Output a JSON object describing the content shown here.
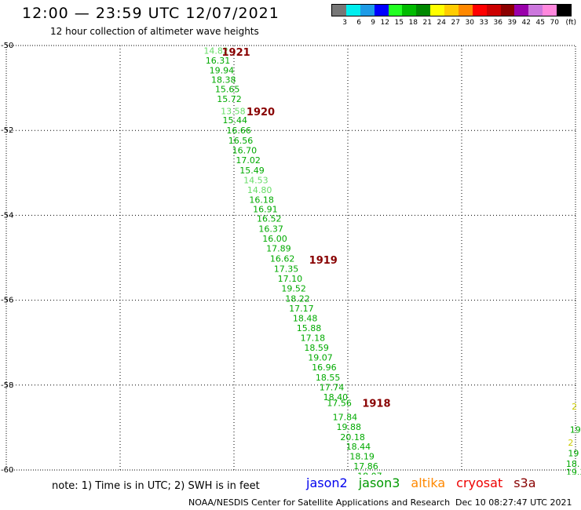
{
  "title": "12:00 — 23:59 UTC 12/07/2021",
  "subtitle": "12 hour collection of altimeter wave heights",
  "legend": {
    "unit": "(ft)",
    "bins": [
      {
        "label": "3",
        "color": "#777777"
      },
      {
        "label": "6",
        "color": "#00eeee"
      },
      {
        "label": "9",
        "color": "#1e9be6"
      },
      {
        "label": "12",
        "color": "#0000ff"
      },
      {
        "label": "15",
        "color": "#22ff22"
      },
      {
        "label": "18",
        "color": "#00bb00"
      },
      {
        "label": "21",
        "color": "#008800"
      },
      {
        "label": "24",
        "color": "#ffff00"
      },
      {
        "label": "27",
        "color": "#ffcc00"
      },
      {
        "label": "30",
        "color": "#ff8800"
      },
      {
        "label": "33",
        "color": "#ff0000"
      },
      {
        "label": "36",
        "color": "#cc0000"
      },
      {
        "label": "39",
        "color": "#8b0000"
      },
      {
        "label": "42",
        "color": "#9900aa"
      },
      {
        "label": "45",
        "color": "#cc77dd"
      },
      {
        "label": "70",
        "color": "#ff88dd"
      },
      {
        "label": "",
        "color": "#000000"
      }
    ]
  },
  "map": {
    "lon_range": [
      45,
      60
    ],
    "lat_range": [
      -50,
      -60
    ],
    "lon_ticks": [
      "45",
      "48",
      "51",
      "54",
      "57",
      "60"
    ],
    "lat_ticks": [
      "-50",
      "-52",
      "-54",
      "-56",
      "-58",
      "-60"
    ]
  },
  "track_points": [
    {
      "lon": 50.2,
      "lat": -50.12,
      "value": "14.82",
      "color": "#66dd66"
    },
    {
      "lon": 50.25,
      "lat": -50.35,
      "value": "16.31",
      "color": "#00aa00"
    },
    {
      "lon": 50.35,
      "lat": -50.58,
      "value": "19.94",
      "color": "#00aa00"
    },
    {
      "lon": 50.4,
      "lat": -50.8,
      "value": "18.38",
      "color": "#00aa00"
    },
    {
      "lon": 50.5,
      "lat": -51.03,
      "value": "15.65",
      "color": "#00aa00"
    },
    {
      "lon": 50.55,
      "lat": -51.26,
      "value": "15.72",
      "color": "#00aa00"
    },
    {
      "lon": 50.65,
      "lat": -51.54,
      "value": "13.58",
      "color": "#66dd66"
    },
    {
      "lon": 50.7,
      "lat": -51.76,
      "value": "15.44",
      "color": "#00aa00"
    },
    {
      "lon": 50.8,
      "lat": -52.0,
      "value": "16.66",
      "color": "#00aa00"
    },
    {
      "lon": 50.85,
      "lat": -52.24,
      "value": "16.56",
      "color": "#00aa00"
    },
    {
      "lon": 50.95,
      "lat": -52.47,
      "value": "16.70",
      "color": "#00aa00"
    },
    {
      "lon": 51.05,
      "lat": -52.7,
      "value": "17.02",
      "color": "#00aa00"
    },
    {
      "lon": 51.15,
      "lat": -52.94,
      "value": "15.49",
      "color": "#00aa00"
    },
    {
      "lon": 51.25,
      "lat": -53.17,
      "value": "14.53",
      "color": "#66dd66"
    },
    {
      "lon": 51.35,
      "lat": -53.4,
      "value": "14.80",
      "color": "#66dd66"
    },
    {
      "lon": 51.4,
      "lat": -53.63,
      "value": "16.18",
      "color": "#00aa00"
    },
    {
      "lon": 51.5,
      "lat": -53.85,
      "value": "16.91",
      "color": "#00aa00"
    },
    {
      "lon": 51.6,
      "lat": -54.08,
      "value": "16.52",
      "color": "#00aa00"
    },
    {
      "lon": 51.65,
      "lat": -54.32,
      "value": "16.37",
      "color": "#00aa00"
    },
    {
      "lon": 51.75,
      "lat": -54.55,
      "value": "16.00",
      "color": "#00aa00"
    },
    {
      "lon": 51.85,
      "lat": -54.78,
      "value": "17.89",
      "color": "#00aa00"
    },
    {
      "lon": 51.95,
      "lat": -55.02,
      "value": "16.62",
      "color": "#00aa00"
    },
    {
      "lon": 52.05,
      "lat": -55.26,
      "value": "17.35",
      "color": "#00aa00"
    },
    {
      "lon": 52.15,
      "lat": -55.49,
      "value": "17.10",
      "color": "#00aa00"
    },
    {
      "lon": 52.25,
      "lat": -55.72,
      "value": "19.52",
      "color": "#00aa00"
    },
    {
      "lon": 52.35,
      "lat": -55.96,
      "value": "18.22",
      "color": "#00aa00"
    },
    {
      "lon": 52.45,
      "lat": -56.19,
      "value": "17.17",
      "color": "#00aa00"
    },
    {
      "lon": 52.55,
      "lat": -56.42,
      "value": "18.48",
      "color": "#00aa00"
    },
    {
      "lon": 52.65,
      "lat": -56.65,
      "value": "15.88",
      "color": "#00aa00"
    },
    {
      "lon": 52.75,
      "lat": -56.89,
      "value": "17.18",
      "color": "#00aa00"
    },
    {
      "lon": 52.85,
      "lat": -57.12,
      "value": "18.59",
      "color": "#00aa00"
    },
    {
      "lon": 52.95,
      "lat": -57.35,
      "value": "19.07",
      "color": "#00aa00"
    },
    {
      "lon": 53.05,
      "lat": -57.58,
      "value": "16.96",
      "color": "#00aa00"
    },
    {
      "lon": 53.15,
      "lat": -57.82,
      "value": "18.55",
      "color": "#00aa00"
    },
    {
      "lon": 53.25,
      "lat": -58.05,
      "value": "17.74",
      "color": "#00aa00"
    },
    {
      "lon": 53.35,
      "lat": -58.28,
      "value": "18.40",
      "color": "#00aa00"
    },
    {
      "lon": 53.45,
      "lat": -58.42,
      "value": "17.56",
      "color": "#00aa00"
    },
    {
      "lon": 53.6,
      "lat": -58.75,
      "value": "17.84",
      "color": "#00aa00"
    },
    {
      "lon": 53.7,
      "lat": -58.98,
      "value": "19.88",
      "color": "#00aa00"
    },
    {
      "lon": 53.8,
      "lat": -59.22,
      "value": "20.18",
      "color": "#00aa00"
    },
    {
      "lon": 53.95,
      "lat": -59.45,
      "value": "18.44",
      "color": "#00aa00"
    },
    {
      "lon": 54.05,
      "lat": -59.68,
      "value": "18.19",
      "color": "#00aa00"
    },
    {
      "lon": 54.15,
      "lat": -59.91,
      "value": "17.86",
      "color": "#00aa00"
    },
    {
      "lon": 54.25,
      "lat": -60.14,
      "value": "18.07",
      "color": "#00aa00"
    }
  ],
  "edge_points": [
    {
      "lon": 59.9,
      "lat": -58.5,
      "value": "2",
      "color": "#cccc00"
    },
    {
      "lon": 59.85,
      "lat": -59.05,
      "value": "19",
      "color": "#00aa00"
    },
    {
      "lon": 59.8,
      "lat": -59.35,
      "value": "2",
      "color": "#cccc00"
    },
    {
      "lon": 59.8,
      "lat": -59.6,
      "value": "19",
      "color": "#00aa00"
    },
    {
      "lon": 59.75,
      "lat": -59.85,
      "value": "18.",
      "color": "#00aa00"
    },
    {
      "lon": 59.75,
      "lat": -60.05,
      "value": "19.3",
      "color": "#00aa00"
    },
    {
      "lon": 59.7,
      "lat": -60.32,
      "value": "20.4",
      "color": "#00aa00"
    }
  ],
  "passes": [
    {
      "lon": 50.1,
      "lat": -50.15,
      "label": "1921",
      "color": "#880000"
    },
    {
      "lon": 50.75,
      "lat": -51.55,
      "label": "1920",
      "color": "#880000"
    },
    {
      "lon": 52.4,
      "lat": -55.05,
      "label": "1919",
      "color": "#880000"
    },
    {
      "lon": 53.8,
      "lat": -58.42,
      "label": "1918",
      "color": "#880000"
    }
  ],
  "note": "note: 1) Time is in UTC; 2) SWH is in feet",
  "satellites": [
    {
      "name": "jason2",
      "color": "#0000ee"
    },
    {
      "name": "jason3",
      "color": "#009900"
    },
    {
      "name": "altika",
      "color": "#ff8800"
    },
    {
      "name": "cryosat",
      "color": "#ee0000"
    },
    {
      "name": "s3a",
      "color": "#880000"
    }
  ],
  "credit": "NOAA/NESDIS Center for Satellite Applications and Research",
  "timestamp": "Dec 10 08:27:47 UTC 2021"
}
